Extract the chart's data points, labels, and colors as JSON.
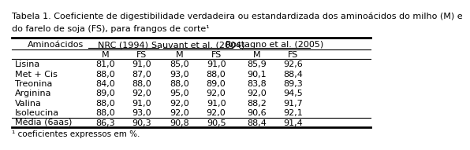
{
  "title_line1": "Tabela 1. Coeficiente de digestibilidade verdadeira ou estandardizada dos aminoácidos do milho (M) e",
  "title_line2": "do farelo de soja (FS), para frangos de corte¹",
  "footnote": "¹ coeficientes expressos em %.",
  "col_groups": [
    "Aminoácidos",
    "NRC (1994)",
    "Sauvant et al. (2004)",
    "Rostagno et al. (2005)"
  ],
  "sub_headers": [
    "M",
    "FS",
    "M",
    "FS",
    "M",
    "FS"
  ],
  "rows": [
    [
      "Lisina",
      "81,0",
      "91,0",
      "85,0",
      "91,0",
      "85,9",
      "92,6"
    ],
    [
      "Met + Cis",
      "88,0",
      "87,0",
      "93,0",
      "88,0",
      "90,1",
      "88,4"
    ],
    [
      "Treonina",
      "84,0",
      "88,0",
      "88,0",
      "89,0",
      "83,8",
      "89,3"
    ],
    [
      "Arginina",
      "89,0",
      "92,0",
      "95,0",
      "92,0",
      "92,0",
      "94,5"
    ],
    [
      "Valina",
      "88,0",
      "91,0",
      "92,0",
      "91,0",
      "88,2",
      "91,7"
    ],
    [
      "Isoleucina",
      "88,0",
      "93,0",
      "92,0",
      "92,0",
      "90,6",
      "92,1"
    ]
  ],
  "mean_row": [
    "Média (6aas)",
    "86,3",
    "90,3",
    "90,8",
    "90,5",
    "88,4",
    "91,4"
  ],
  "bg_color": "#ffffff",
  "text_color": "#000000",
  "font_size": 8.0,
  "title_font_size": 8.0
}
